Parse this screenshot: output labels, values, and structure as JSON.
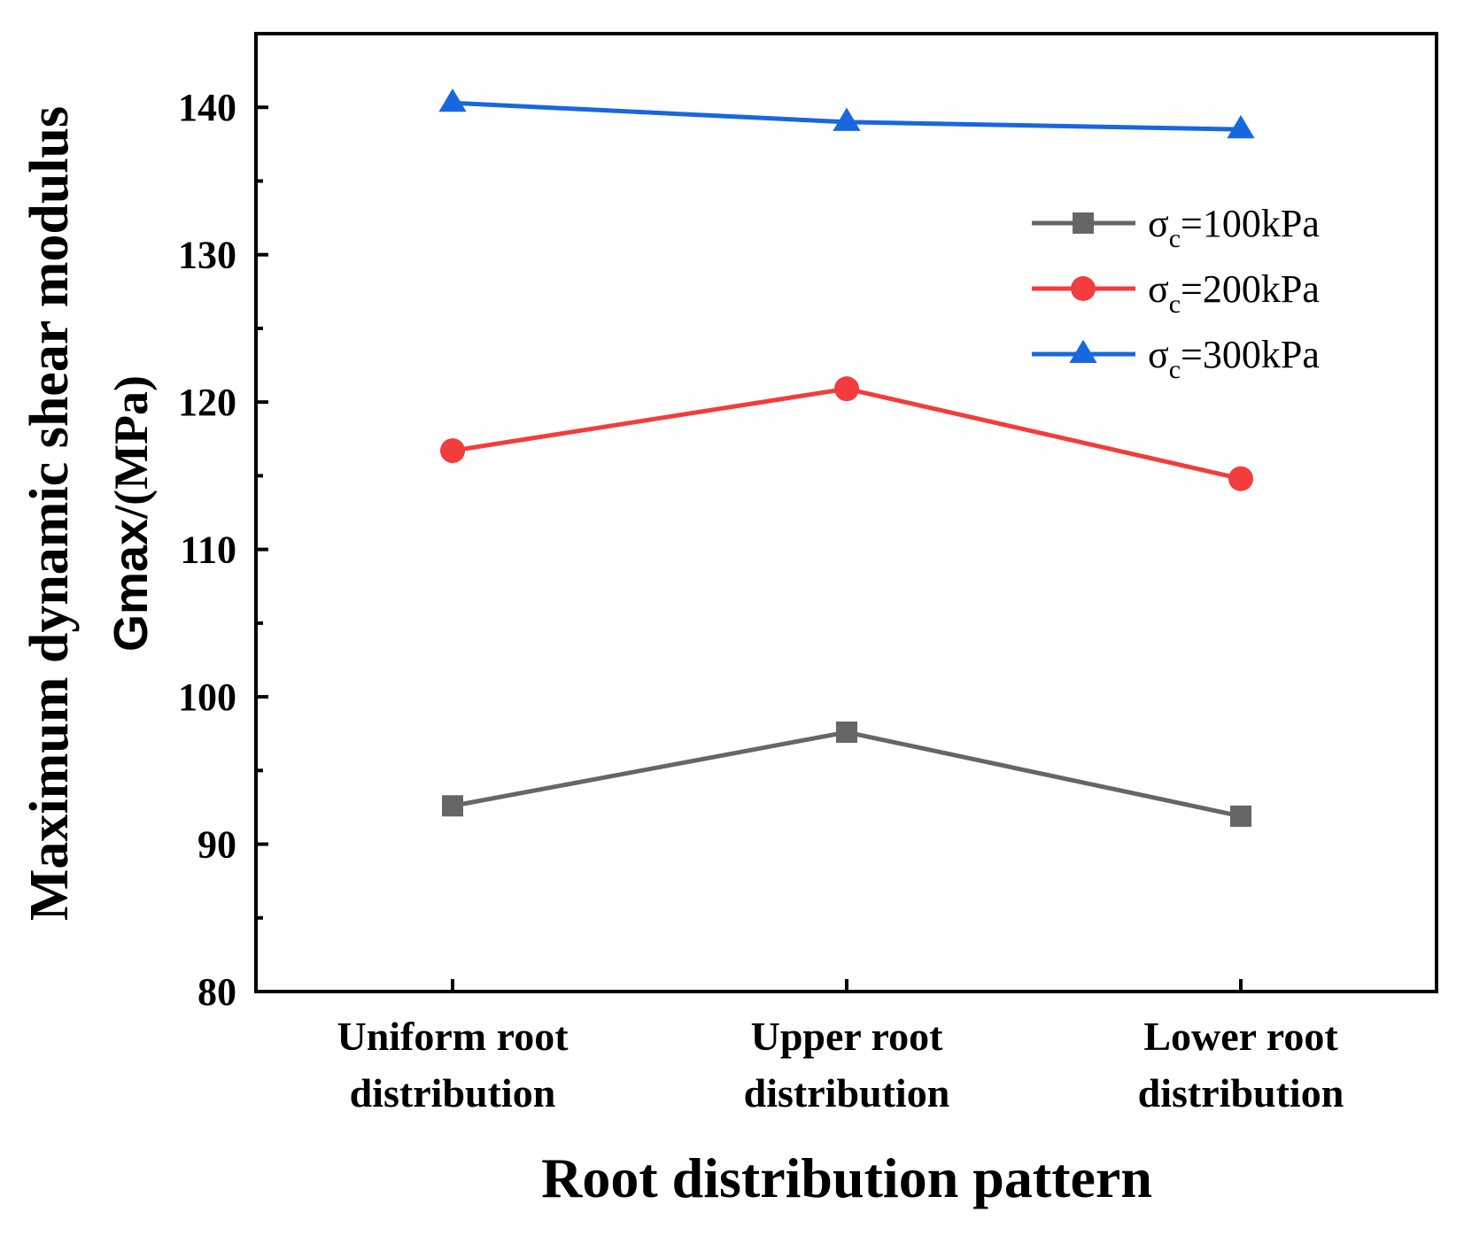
{
  "chart_data": {
    "type": "line",
    "title": "",
    "categories": [
      [
        "Uniform root",
        "distribution"
      ],
      [
        "Upper root",
        "distribution"
      ],
      [
        "Lower root",
        "distribution"
      ]
    ],
    "series": [
      {
        "name": "σc=100kPa",
        "sigma": "σ",
        "sub": "c",
        "rest": "=100kPa",
        "color": "#666666",
        "marker": "square",
        "values": [
          92.6,
          97.6,
          91.9
        ]
      },
      {
        "name": "σc=200kPa",
        "sigma": "σ",
        "sub": "c",
        "rest": "=200kPa",
        "color": "#f33c3c",
        "marker": "circle",
        "values": [
          116.7,
          120.9,
          114.8
        ]
      },
      {
        "name": "σc=300kPa",
        "sigma": "σ",
        "sub": "c",
        "rest": "=300kPa",
        "color": "#1767e0",
        "marker": "triangle",
        "values": [
          140.3,
          139.0,
          138.5
        ]
      }
    ],
    "xlabel": "Root distribution pattern",
    "ylabel": {
      "line1": "Maximum dynamic shear modulus",
      "line2_symbol": "Gmax",
      "line2_unit": "/(MPa)"
    },
    "ylim": [
      80,
      145
    ],
    "yticks": [
      80,
      90,
      100,
      110,
      120,
      130,
      140
    ],
    "legend_position": "top-right",
    "grid": false
  }
}
